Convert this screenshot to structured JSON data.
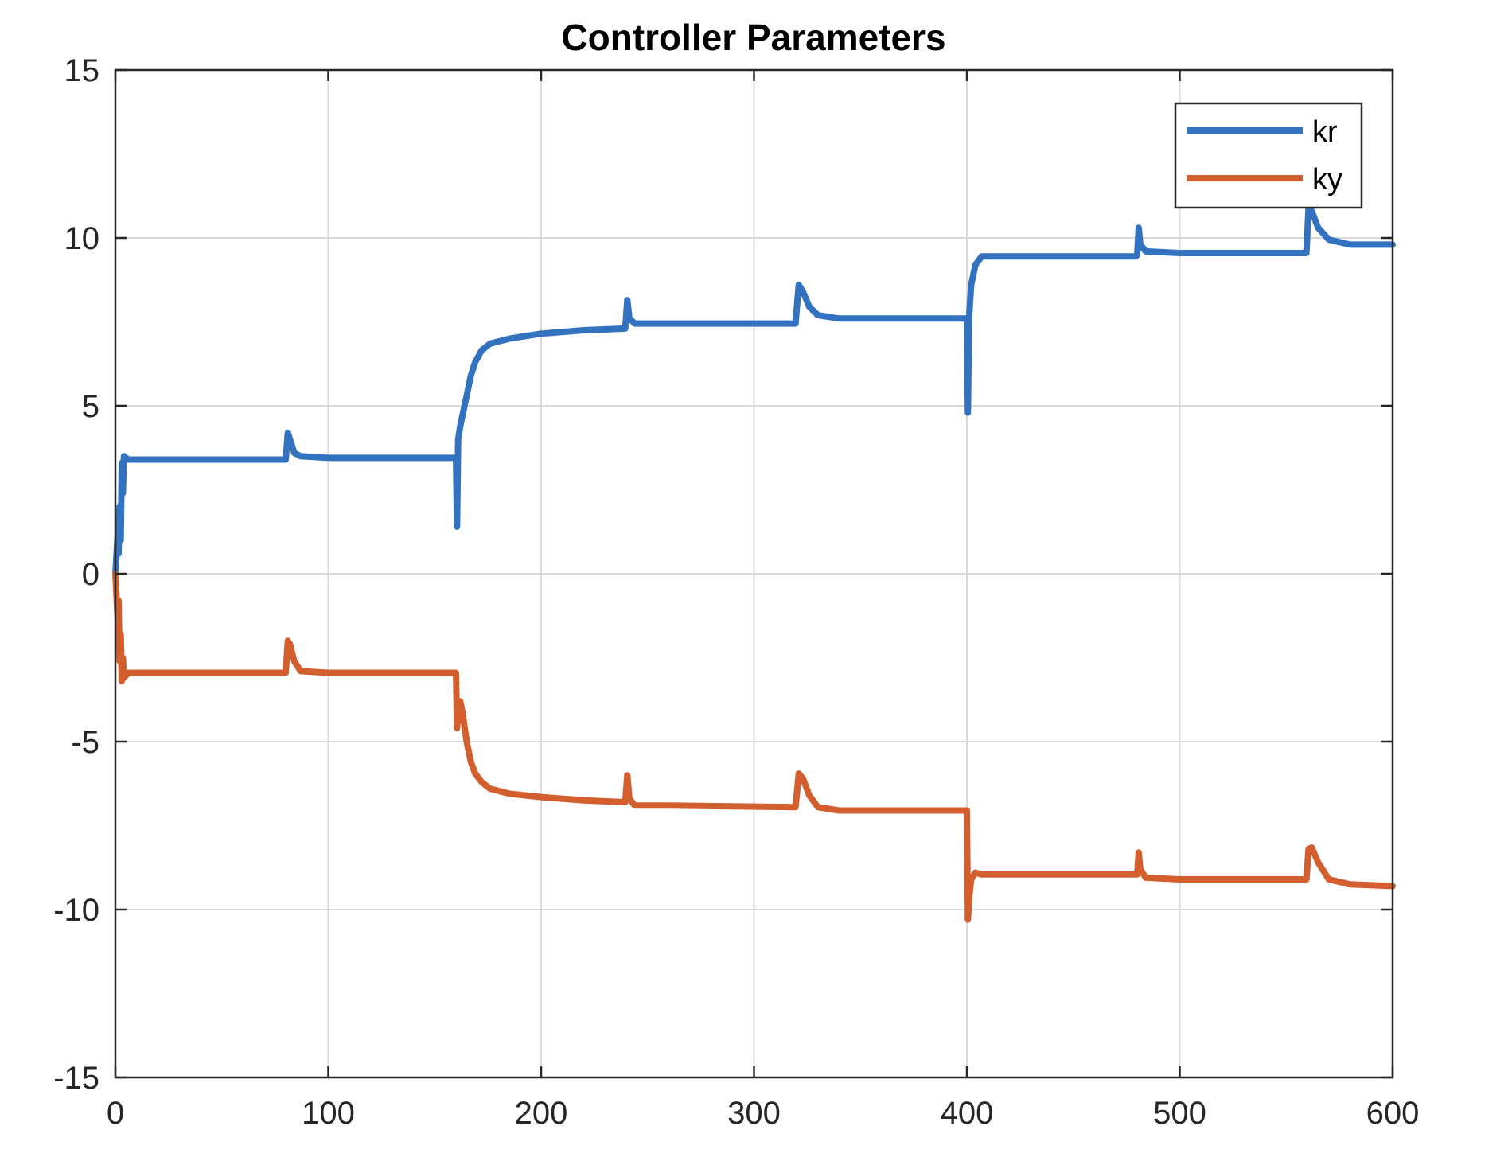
{
  "chart_data": {
    "type": "line",
    "title": "Controller Parameters",
    "xlabel": "",
    "ylabel": "",
    "xlim": [
      0,
      600
    ],
    "ylim": [
      -15,
      15
    ],
    "xticks": [
      "0",
      "100",
      "200",
      "300",
      "400",
      "500",
      "600"
    ],
    "yticks": [
      "15",
      "10",
      "5",
      "0",
      "-5",
      "-10",
      "-15"
    ],
    "grid": true,
    "legend_position": "top-right",
    "series": [
      {
        "name": "kr",
        "color": "#3372BF",
        "points": [
          [
            0,
            0
          ],
          [
            1,
            1.1
          ],
          [
            1.5,
            0.6
          ],
          [
            2,
            2.0
          ],
          [
            2.5,
            1.0
          ],
          [
            3,
            3.3
          ],
          [
            3.5,
            2.4
          ],
          [
            4,
            3.5
          ],
          [
            6,
            3.4
          ],
          [
            10,
            3.4
          ],
          [
            40,
            3.4
          ],
          [
            79.5,
            3.4
          ],
          [
            80,
            3.4
          ],
          [
            81,
            4.2
          ],
          [
            82,
            4.0
          ],
          [
            84,
            3.6
          ],
          [
            87,
            3.5
          ],
          [
            100,
            3.45
          ],
          [
            159.5,
            3.45
          ],
          [
            160,
            3.45
          ],
          [
            160.5,
            1.4
          ],
          [
            161,
            4.0
          ],
          [
            162,
            4.4
          ],
          [
            163,
            4.7
          ],
          [
            165,
            5.3
          ],
          [
            167,
            5.9
          ],
          [
            169,
            6.3
          ],
          [
            172,
            6.65
          ],
          [
            176,
            6.85
          ],
          [
            185,
            7.0
          ],
          [
            200,
            7.15
          ],
          [
            220,
            7.25
          ],
          [
            239.5,
            7.3
          ],
          [
            240.5,
            8.15
          ],
          [
            241.5,
            7.6
          ],
          [
            244,
            7.45
          ],
          [
            260,
            7.45
          ],
          [
            319.5,
            7.45
          ],
          [
            321,
            8.6
          ],
          [
            323,
            8.4
          ],
          [
            326,
            7.95
          ],
          [
            330,
            7.7
          ],
          [
            340,
            7.6
          ],
          [
            399.5,
            7.6
          ],
          [
            400,
            7.6
          ],
          [
            400.5,
            4.8
          ],
          [
            401,
            7.6
          ],
          [
            402,
            8.6
          ],
          [
            404,
            9.2
          ],
          [
            407,
            9.45
          ],
          [
            420,
            9.45
          ],
          [
            479.5,
            9.45
          ],
          [
            480,
            9.5
          ],
          [
            480.7,
            10.3
          ],
          [
            481.5,
            9.8
          ],
          [
            484,
            9.6
          ],
          [
            500,
            9.55
          ],
          [
            559.5,
            9.55
          ],
          [
            560.5,
            10.9
          ],
          [
            562,
            10.8
          ],
          [
            565,
            10.3
          ],
          [
            570,
            9.95
          ],
          [
            580,
            9.8
          ],
          [
            600,
            9.8
          ]
        ]
      },
      {
        "name": "ky",
        "color": "#D35F2E",
        "points": [
          [
            0,
            0
          ],
          [
            1,
            -1.3
          ],
          [
            1.5,
            -0.8
          ],
          [
            2,
            -2.6
          ],
          [
            2.5,
            -1.8
          ],
          [
            3,
            -3.2
          ],
          [
            3.5,
            -2.5
          ],
          [
            4,
            -3.1
          ],
          [
            6,
            -2.95
          ],
          [
            10,
            -2.95
          ],
          [
            40,
            -2.95
          ],
          [
            79.5,
            -2.95
          ],
          [
            80,
            -2.95
          ],
          [
            81,
            -2.0
          ],
          [
            82,
            -2.1
          ],
          [
            84,
            -2.6
          ],
          [
            87,
            -2.9
          ],
          [
            100,
            -2.95
          ],
          [
            159.5,
            -2.95
          ],
          [
            160,
            -2.95
          ],
          [
            160.5,
            -4.6
          ],
          [
            161,
            -4.2
          ],
          [
            162,
            -3.8
          ],
          [
            163,
            -4.1
          ],
          [
            165,
            -5.0
          ],
          [
            167,
            -5.6
          ],
          [
            169,
            -5.95
          ],
          [
            172,
            -6.2
          ],
          [
            176,
            -6.4
          ],
          [
            185,
            -6.55
          ],
          [
            200,
            -6.65
          ],
          [
            220,
            -6.75
          ],
          [
            239.5,
            -6.8
          ],
          [
            240.5,
            -6.0
          ],
          [
            241.5,
            -6.7
          ],
          [
            244,
            -6.9
          ],
          [
            260,
            -6.9
          ],
          [
            319.5,
            -6.95
          ],
          [
            321,
            -5.95
          ],
          [
            323,
            -6.1
          ],
          [
            326,
            -6.6
          ],
          [
            330,
            -6.95
          ],
          [
            340,
            -7.05
          ],
          [
            399.5,
            -7.05
          ],
          [
            400,
            -7.05
          ],
          [
            400.5,
            -10.3
          ],
          [
            401,
            -9.7
          ],
          [
            402,
            -9.1
          ],
          [
            404,
            -8.9
          ],
          [
            407,
            -8.95
          ],
          [
            420,
            -8.95
          ],
          [
            479.5,
            -8.95
          ],
          [
            480,
            -8.95
          ],
          [
            480.7,
            -8.3
          ],
          [
            481.5,
            -8.8
          ],
          [
            484,
            -9.05
          ],
          [
            500,
            -9.1
          ],
          [
            559.5,
            -9.1
          ],
          [
            560.5,
            -8.2
          ],
          [
            562,
            -8.15
          ],
          [
            565,
            -8.6
          ],
          [
            570,
            -9.1
          ],
          [
            580,
            -9.25
          ],
          [
            600,
            -9.3
          ]
        ]
      }
    ]
  }
}
